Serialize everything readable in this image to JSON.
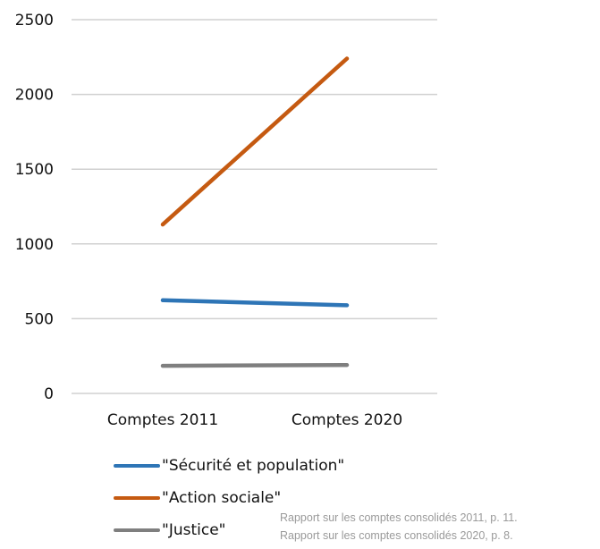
{
  "chart_data": {
    "type": "line",
    "categories": [
      "Comptes 2011",
      "Comptes 2020"
    ],
    "series": [
      {
        "name": "\"Sécurité et population\"",
        "values": [
          623,
          590
        ],
        "color": "#2e75b6"
      },
      {
        "name": "\"Action sociale\"",
        "values": [
          1130,
          2240
        ],
        "color": "#c55a11"
      },
      {
        "name": "\"Justice\"",
        "values": [
          185,
          190
        ],
        "color": "#7f7f7f"
      }
    ],
    "yticks": [
      "0",
      "500",
      "1000",
      "1500",
      "2000",
      "2500"
    ],
    "ylim": [
      0,
      2500
    ],
    "grid": true,
    "legend_position": "bottom"
  },
  "source_notes": [
    "Rapport sur les comptes consolidés 2011, p. 11.",
    "Rapport sur les comptes consolidés 2020, p.   8."
  ]
}
